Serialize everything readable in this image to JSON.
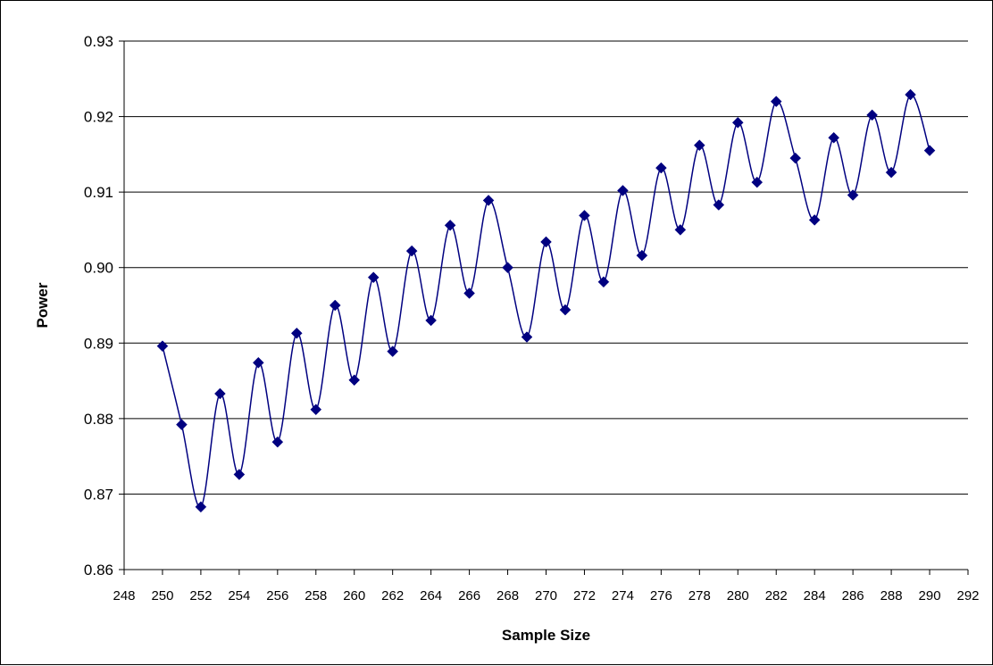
{
  "chart_data": {
    "type": "line",
    "title": "",
    "xlabel": "Sample Size",
    "ylabel": "Power",
    "xlim": [
      248,
      292
    ],
    "ylim": [
      0.86,
      0.93
    ],
    "x_ticks": [
      "248",
      "250",
      "252",
      "254",
      "256",
      "258",
      "260",
      "262",
      "264",
      "266",
      "268",
      "270",
      "272",
      "274",
      "276",
      "278",
      "280",
      "282",
      "284",
      "286",
      "288",
      "290",
      "292"
    ],
    "y_ticks": [
      "0.86",
      "0.87",
      "0.88",
      "0.89",
      "0.90",
      "0.91",
      "0.92",
      "0.93"
    ],
    "grid": "horizontal",
    "legend": "none",
    "series": [
      {
        "color": "#000080",
        "marker": "diamond",
        "smooth": true,
        "x": [
          250,
          251,
          252,
          253,
          254,
          255,
          256,
          257,
          258,
          259,
          260,
          261,
          262,
          263,
          264,
          265,
          266,
          267,
          268,
          269,
          270,
          271,
          272,
          273,
          274,
          275,
          276,
          277,
          278,
          279,
          280,
          281,
          282,
          283,
          284,
          285,
          286,
          287,
          288,
          289,
          290
        ],
        "values": [
          0.8896,
          0.8792,
          0.8683,
          0.8833,
          0.8726,
          0.8874,
          0.8769,
          0.8913,
          0.8812,
          0.895,
          0.8851,
          0.8987,
          0.8889,
          0.9022,
          0.893,
          0.9056,
          0.8966,
          0.9089,
          0.9,
          0.8908,
          0.9034,
          0.8944,
          0.9069,
          0.8981,
          0.9102,
          0.9016,
          0.9132,
          0.905,
          0.9162,
          0.9083,
          0.9192,
          0.9113,
          0.922,
          0.9145,
          0.9063,
          0.9172,
          0.9096,
          0.9202,
          0.9126,
          0.9229,
          0.9155
        ]
      }
    ]
  }
}
